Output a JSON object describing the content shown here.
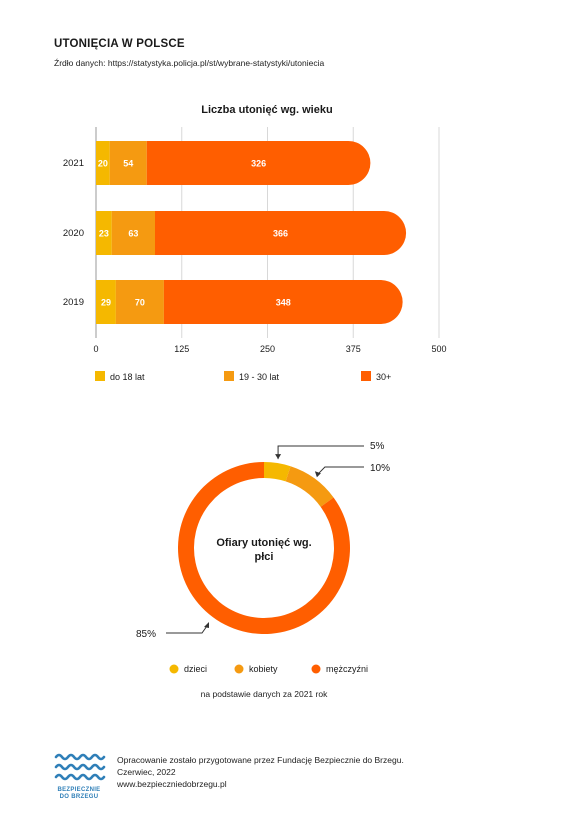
{
  "header": {
    "title": "UTONIĘCIA W POLSCE",
    "source": "Źrdło danych: https://statystyka.policja.pl/st/wybrane-statystyki/utoniecia"
  },
  "chart_data": [
    {
      "type": "bar",
      "orientation": "horizontal",
      "stacked": true,
      "title": "Liczba utonięć wg. wieku",
      "categories": [
        "2021",
        "2020",
        "2019"
      ],
      "series": [
        {
          "name": "do 18 lat",
          "color": "#f5b800",
          "values": [
            20,
            23,
            29
          ]
        },
        {
          "name": "19 - 30 lat",
          "color": "#f59a11",
          "values": [
            54,
            63,
            70
          ]
        },
        {
          "name": "30+",
          "color": "#ff5e00",
          "values": [
            326,
            366,
            348
          ]
        }
      ],
      "xlim": [
        0,
        500
      ],
      "xticks": [
        "0",
        "125",
        "250",
        "375",
        "500"
      ],
      "grid": true,
      "legend": "bottom"
    },
    {
      "type": "pie",
      "donut": true,
      "title": "Ofiary utonięć wg. płci",
      "series": [
        {
          "name": "dzieci",
          "value": 5,
          "label": "5%",
          "color": "#f5b800"
        },
        {
          "name": "kobiety",
          "value": 10,
          "label": "10%",
          "color": "#f59a11"
        },
        {
          "name": "mężczyźni",
          "value": 85,
          "label": "85%",
          "color": "#ff5e00"
        }
      ],
      "legend": "bottom",
      "note": "na podstawie danych za 2021 rok"
    }
  ],
  "footer": {
    "line1": "Opracowanie zostało przygotowane przez Fundację Bezpiecznie do Brzegu.",
    "line2": "Czerwiec, 2022",
    "line3": "www.bezpieczniedobrzegu.pl",
    "logo_line1": "BEZPIECZNIE",
    "logo_line2": "DO BRZEGU",
    "logo_color": "#2f7fb8"
  }
}
